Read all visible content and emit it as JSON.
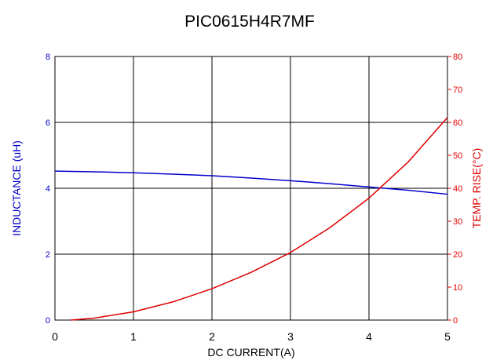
{
  "chart_data": {
    "type": "line",
    "title": "PIC0615H4R7MF",
    "xlabel": "DC CURRENT(A)",
    "ylabel_left": "INDUCTANCE (uH)",
    "ylabel_right": "TEMP. RISE(°C)",
    "xlim": [
      0,
      5
    ],
    "ylim_left": [
      0,
      8
    ],
    "ylim_right": [
      0,
      80
    ],
    "x_ticks": [
      "0",
      "1",
      "2",
      "3",
      "4",
      "5"
    ],
    "y_left_ticks": [
      "0",
      "2",
      "4",
      "6",
      "8"
    ],
    "y_right_ticks": [
      "0",
      "10",
      "20",
      "30",
      "40",
      "50",
      "60",
      "70",
      "80"
    ],
    "grid": true,
    "colors": {
      "inductance": "#0000cc",
      "temp_rise": "#e00000",
      "grid": "#000000"
    },
    "series": [
      {
        "axis": "left",
        "x": [
          0,
          0.5,
          1,
          1.5,
          2,
          2.5,
          3,
          3.5,
          4,
          4.5,
          5
        ],
        "values": [
          4.52,
          4.5,
          4.47,
          4.43,
          4.38,
          4.31,
          4.23,
          4.14,
          4.04,
          3.94,
          3.82
        ]
      },
      {
        "axis": "right",
        "x": [
          0.2,
          0.5,
          1,
          1.5,
          2,
          2.5,
          3,
          3.5,
          4,
          4.5,
          5
        ],
        "values": [
          0,
          0.6,
          2.5,
          5.5,
          9.5,
          14.5,
          20.5,
          28,
          37,
          48,
          61.5
        ]
      }
    ]
  }
}
